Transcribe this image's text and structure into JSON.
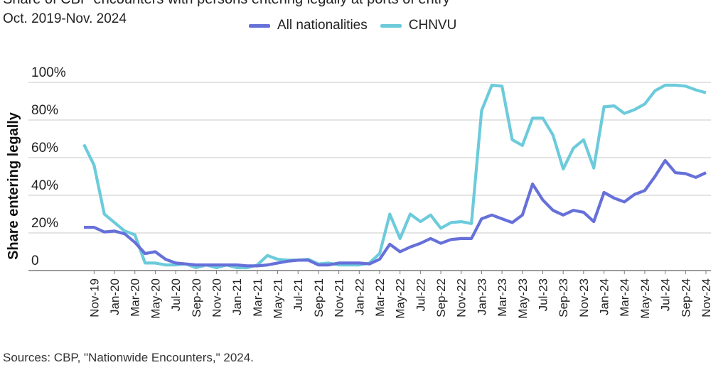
{
  "chart_data": {
    "type": "line",
    "title": "Share of CBP encounters with persons entering legally at ports of entry",
    "subtitle": "Oct. 2019-Nov. 2024",
    "ylabel": "Share entering legally",
    "xlabel": "",
    "ylim": [
      0,
      100
    ],
    "yticks": [
      0,
      20,
      40,
      60,
      80,
      100
    ],
    "ytick_labels": [
      "0",
      "20%",
      "40%",
      "60%",
      "80%",
      "100%"
    ],
    "xtick_labels": [
      "Nov-19",
      "Jan-20",
      "Mar-20",
      "May-20",
      "Jul-20",
      "Sep-20",
      "Nov-20",
      "Jan-21",
      "Mar-21",
      "May-21",
      "Jul-21",
      "Sep-21",
      "Nov-21",
      "Jan-22",
      "Mar-22",
      "May-22",
      "Jul-22",
      "Sep-22",
      "Nov-22",
      "Jan-23",
      "Mar-23",
      "May-23",
      "Jul-23",
      "Sep-23",
      "Nov-23",
      "Jan-24",
      "Mar-24",
      "May-24",
      "Jul-24",
      "Sep-24",
      "Nov-24"
    ],
    "x": [
      "Oct-19",
      "Nov-19",
      "Dec-19",
      "Jan-20",
      "Feb-20",
      "Mar-20",
      "Apr-20",
      "May-20",
      "Jun-20",
      "Jul-20",
      "Aug-20",
      "Sep-20",
      "Oct-20",
      "Nov-20",
      "Dec-20",
      "Jan-21",
      "Feb-21",
      "Mar-21",
      "Apr-21",
      "May-21",
      "Jun-21",
      "Jul-21",
      "Aug-21",
      "Sep-21",
      "Oct-21",
      "Nov-21",
      "Dec-21",
      "Jan-22",
      "Feb-22",
      "Mar-22",
      "Apr-22",
      "May-22",
      "Jun-22",
      "Jul-22",
      "Aug-22",
      "Sep-22",
      "Oct-22",
      "Nov-22",
      "Dec-22",
      "Jan-23",
      "Feb-23",
      "Mar-23",
      "Apr-23",
      "May-23",
      "Jun-23",
      "Jul-23",
      "Aug-23",
      "Sep-23",
      "Oct-23",
      "Nov-23",
      "Dec-23",
      "Jan-24",
      "Feb-24",
      "Mar-24",
      "Apr-24",
      "May-24",
      "Jun-24",
      "Jul-24",
      "Aug-24",
      "Sep-24",
      "Oct-24",
      "Nov-24"
    ],
    "series": [
      {
        "name": "All nationalities",
        "color": "#6670d9",
        "values": [
          23,
          23,
          20.5,
          21,
          19.5,
          15,
          9,
          10,
          6,
          4,
          3.5,
          3,
          3,
          3,
          3,
          3,
          2.5,
          2.5,
          3,
          4,
          5,
          5.5,
          5.5,
          3,
          3,
          4,
          4,
          4,
          3.5,
          6,
          14,
          10,
          12.5,
          14.5,
          17,
          14.5,
          16.5,
          17,
          17,
          27.5,
          29.5,
          27.5,
          25.5,
          29.5,
          46,
          37.5,
          32,
          29.5,
          32,
          31,
          26,
          41.5,
          38.5,
          36.5,
          40.5,
          42.5,
          50,
          58.5,
          52,
          51.5,
          49.5,
          52
        ]
      },
      {
        "name": "CHNVU",
        "color": "#6ccbdb",
        "values": [
          67,
          56,
          30,
          25.5,
          21,
          19,
          4,
          4,
          3,
          3,
          3.5,
          1.5,
          3,
          1.5,
          3,
          1.5,
          1.5,
          3,
          8,
          6,
          5.5,
          5.5,
          6,
          3.5,
          4,
          3,
          3,
          3,
          4,
          9,
          30,
          17,
          30,
          26,
          29.5,
          22.5,
          25.5,
          26,
          25,
          85,
          98.5,
          98,
          69.5,
          66.5,
          81,
          81,
          72,
          54,
          65,
          69.5,
          54.5,
          87,
          87.5,
          83.5,
          85.5,
          88.5,
          95.5,
          98.5,
          98.5,
          98,
          96,
          94.5
        ]
      }
    ],
    "legend": [
      "All nationalities",
      "CHNVU"
    ],
    "legend_position": "top-center",
    "grid": true
  },
  "source_note": "Sources: CBP, \"Nationwide Encounters,\" 2024."
}
